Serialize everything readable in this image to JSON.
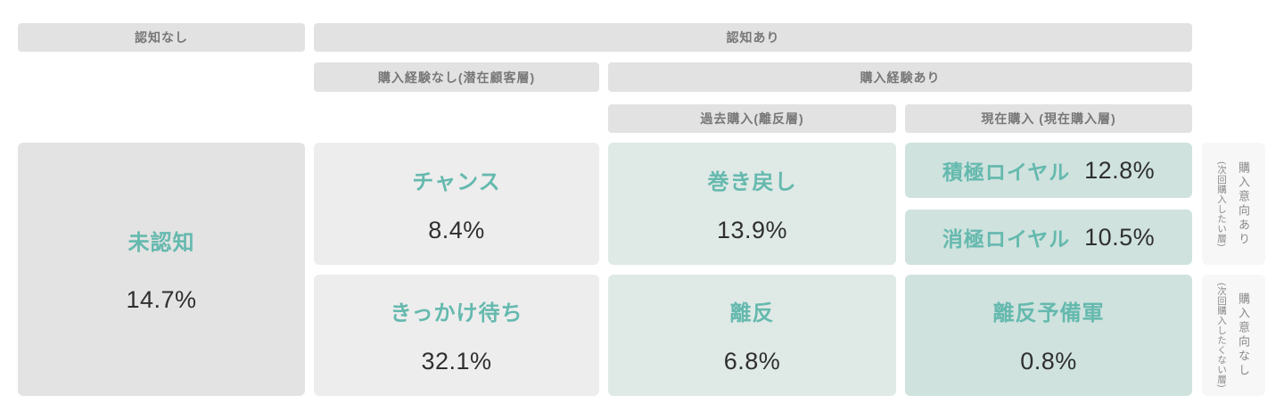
{
  "headers": {
    "no_awareness": "認知なし",
    "awareness": "認知あり",
    "no_purchase_experience": "購入経験なし(潜在顧客層)",
    "purchase_experience": "購入経験あり",
    "past_purchase": "過去購入(離反層)",
    "current_purchase": "現在購入 (現在購入層)"
  },
  "cells": {
    "unaware": {
      "label": "未認知",
      "value": "14.7%"
    },
    "chance": {
      "label": "チャンス",
      "value": "8.4%"
    },
    "waiting": {
      "label": "きっかけ待ち",
      "value": "32.1%"
    },
    "winback": {
      "label": "巻き戻し",
      "value": "13.9%"
    },
    "churn": {
      "label": "離反",
      "value": "6.8%"
    },
    "active_loyal": {
      "label": "積極ロイヤル",
      "value": "12.8%"
    },
    "passive_loyal": {
      "label": "消極ロイヤル",
      "value": "10.5%"
    },
    "churn_risk": {
      "label": "離反予備軍",
      "value": "0.8%"
    }
  },
  "sidebar": {
    "intent_yes": {
      "label": "購入意向あり",
      "sub": "(次回購入したい層)"
    },
    "intent_no": {
      "label": "購入意向なし",
      "sub": "(次回購入したくない層)"
    }
  },
  "colors": {
    "accent_teal_text": "#65b9ae",
    "cell_teal": "#cfe2de",
    "cell_teal_light": "#dfe9e6",
    "cell_gray": "#ededed",
    "cell_gray_dark": "#e3e3e3",
    "header_gray": "#e2e2e2",
    "value_text": "#2f2f2f",
    "muted_text": "#777777"
  }
}
